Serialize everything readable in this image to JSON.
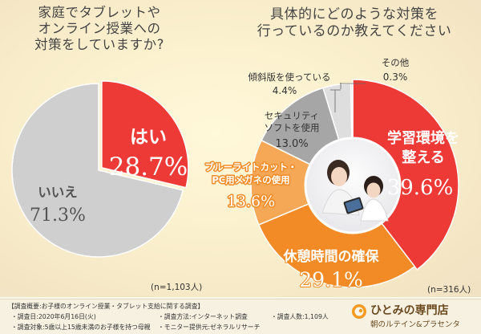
{
  "colors": {
    "red": "#ee3a36",
    "gray": "#cfcfcf",
    "orange": "#f28b25",
    "gray_dark": "#a6a6a6",
    "gray_light": "#dedede"
  },
  "chart_data": [
    {
      "type": "pie",
      "title": "家庭でタブレットや\nオンライン授業への\n対策をしていますか?",
      "categories": [
        "はい",
        "いいえ"
      ],
      "values": [
        28.7,
        71.3
      ],
      "unit": "%",
      "value_labels": [
        "28.7%",
        "71.3%"
      ],
      "note": "(n=1,103人)"
    },
    {
      "type": "pie",
      "title": "具体的にどのような対策を\n行っているのか教えてください",
      "categories": [
        "学習環境を整える",
        "休憩時間の確保",
        "ブルーライトカット・PC用メガネの使用",
        "セキュリティソフトを使用",
        "傾斜版を使っている",
        "その他"
      ],
      "values": [
        39.6,
        29.1,
        13.6,
        13.0,
        4.4,
        0.3
      ],
      "unit": "%",
      "value_labels": [
        "39.6%",
        "29.1%",
        "13.6%",
        "13.0%",
        "4.4%",
        "0.3%"
      ],
      "note": "(n=316人)"
    }
  ],
  "footer": {
    "heading": "【調査概要:お子様のオンライン授業・タブレット支給に関する調査】",
    "date": "・調査日:2020年6月16日(火)",
    "method": "・調査方法:インターネット調査",
    "count": "・調査人数:1,109人",
    "target": "・調査対象:5歳以上15歳未満のお子様を持つ母親",
    "provider": "・モニター提供元:ゼネラルリサーチ"
  },
  "brand": {
    "name": "ひとみの専門店",
    "tagline": "朝のルテイン&プラセンタ"
  }
}
